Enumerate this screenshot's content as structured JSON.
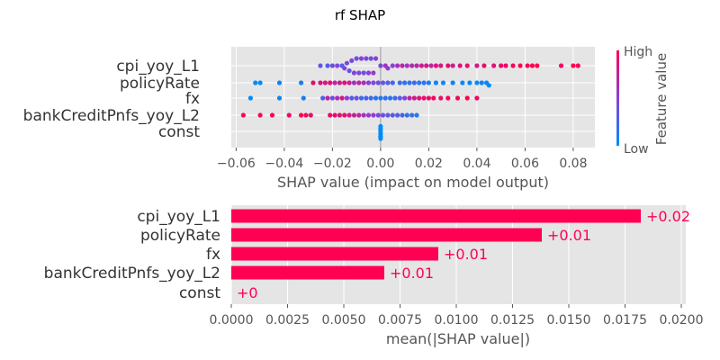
{
  "figure_title": "rf SHAP",
  "chart_data": [
    {
      "type": "scatter",
      "subtype": "shap-beeswarm",
      "features": [
        "cpi_yoy_L1",
        "policyRate",
        "fx",
        "bankCreditPnfs_yoy_L2",
        "const"
      ],
      "xlabel": "SHAP value (impact on model output)",
      "xlim": [
        -0.062,
        0.089
      ],
      "xticks": [
        -0.06,
        -0.04,
        -0.02,
        0.0,
        0.02,
        0.04,
        0.06,
        0.08
      ],
      "xtick_labels": [
        "−0.06",
        "−0.04",
        "−0.02",
        "0.00",
        "0.02",
        "0.04",
        "0.06",
        "0.08"
      ],
      "grid": true,
      "colorbar": {
        "label": "Feature value",
        "high": "High",
        "low": "Low",
        "high_color": "#ff0052",
        "low_color": "#008bfb"
      },
      "series": [
        {
          "feature": "cpi_yoy_L1",
          "x": [
            -0.025,
            -0.022,
            -0.02,
            -0.018,
            -0.016,
            -0.015,
            -0.014,
            -0.013,
            -0.012,
            -0.011,
            -0.01,
            -0.009,
            -0.008,
            -0.007,
            -0.006,
            -0.005,
            -0.004,
            -0.003,
            -0.002,
            0.0,
            0.002,
            0.003,
            0.005,
            0.007,
            0.009,
            0.011,
            0.013,
            0.015,
            0.017,
            0.019,
            0.021,
            0.023,
            0.025,
            0.028,
            0.03,
            0.033,
            0.036,
            0.04,
            0.043,
            0.047,
            0.05,
            0.052,
            0.055,
            0.058,
            0.061,
            0.063,
            0.065,
            0.075,
            0.08,
            0.082
          ],
          "v": [
            0.35,
            0.3,
            0.4,
            0.45,
            0.3,
            0.5,
            0.4,
            0.35,
            0.45,
            0.5,
            0.4,
            0.45,
            0.5,
            0.4,
            0.45,
            0.5,
            0.4,
            0.55,
            0.5,
            0.45,
            0.6,
            0.55,
            0.5,
            0.6,
            0.7,
            0.6,
            0.65,
            0.7,
            0.75,
            0.8,
            0.7,
            0.85,
            0.8,
            0.9,
            0.75,
            0.85,
            0.9,
            0.8,
            0.9,
            0.85,
            0.95,
            0.9,
            0.95,
            1.0,
            0.95,
            1.0,
            1.0,
            0.95,
            1.0,
            1.0
          ]
        },
        {
          "feature": "policyRate",
          "x": [
            -0.052,
            -0.05,
            -0.042,
            -0.033,
            -0.028,
            -0.025,
            -0.023,
            -0.021,
            -0.019,
            -0.017,
            -0.015,
            -0.013,
            -0.011,
            -0.009,
            -0.007,
            -0.005,
            -0.003,
            -0.001,
            0.001,
            0.003,
            0.005,
            0.008,
            0.01,
            0.012,
            0.014,
            0.016,
            0.018,
            0.02,
            0.023,
            0.026,
            0.03,
            0.034,
            0.037,
            0.04,
            0.042,
            0.044,
            0.045
          ],
          "v": [
            0.0,
            0.0,
            0.05,
            0.1,
            0.9,
            0.85,
            0.8,
            0.9,
            0.7,
            0.8,
            0.85,
            0.75,
            0.6,
            0.7,
            0.65,
            0.5,
            0.45,
            0.4,
            0.35,
            0.3,
            0.25,
            0.2,
            0.2,
            0.15,
            0.25,
            0.1,
            0.15,
            0.1,
            0.05,
            0.0,
            0.05,
            0.0,
            0.0,
            0.0,
            0.05,
            0.0,
            0.0
          ]
        },
        {
          "feature": "fx",
          "x": [
            -0.054,
            -0.042,
            -0.032,
            -0.024,
            -0.022,
            -0.02,
            -0.018,
            -0.016,
            -0.014,
            -0.012,
            -0.01,
            -0.008,
            -0.006,
            -0.004,
            -0.002,
            0.0,
            0.002,
            0.004,
            0.006,
            0.008,
            0.01,
            0.012,
            0.014,
            0.016,
            0.018,
            0.02,
            0.022,
            0.025,
            0.028,
            0.032,
            0.036,
            0.04
          ],
          "v": [
            0.0,
            0.05,
            0.1,
            0.3,
            0.7,
            0.4,
            0.6,
            0.8,
            0.5,
            0.3,
            0.4,
            0.2,
            0.3,
            0.2,
            0.15,
            0.1,
            0.2,
            0.15,
            0.25,
            0.3,
            0.5,
            0.7,
            0.8,
            0.85,
            0.9,
            0.9,
            0.95,
            0.9,
            1.0,
            0.95,
            1.0,
            0.95
          ]
        },
        {
          "feature": "bankCreditPnfs_yoy_L2",
          "x": [
            -0.057,
            -0.05,
            -0.045,
            -0.038,
            -0.033,
            -0.031,
            -0.029,
            -0.021,
            -0.019,
            -0.017,
            -0.015,
            -0.013,
            -0.011,
            -0.009,
            -0.007,
            -0.005,
            -0.003,
            -0.001,
            0.001,
            0.003,
            0.005,
            0.007,
            0.009,
            0.011,
            0.013,
            0.015
          ],
          "v": [
            1.0,
            0.95,
            1.0,
            0.95,
            1.0,
            0.95,
            0.9,
            0.95,
            0.9,
            0.85,
            0.9,
            0.8,
            0.75,
            0.7,
            0.6,
            0.55,
            0.5,
            0.45,
            0.4,
            0.35,
            0.3,
            0.3,
            0.25,
            0.2,
            0.15,
            0.15
          ]
        },
        {
          "feature": "const",
          "x": [
            0.0,
            0.0,
            0.0,
            0.0,
            0.0,
            0.0
          ],
          "v": [
            0.0,
            0.0,
            0.0,
            0.0,
            0.0,
            0.0
          ]
        }
      ]
    },
    {
      "type": "bar",
      "orientation": "horizontal",
      "categories": [
        "cpi_yoy_L1",
        "policyRate",
        "fx",
        "bankCreditPnfs_yoy_L2",
        "const"
      ],
      "values": [
        0.0182,
        0.0138,
        0.0092,
        0.0068,
        0.0
      ],
      "data_labels": [
        "+0.02",
        "+0.01",
        "+0.01",
        "+0.01",
        "+0"
      ],
      "xlabel": "mean(|SHAP value|)",
      "xlim": [
        0.0,
        0.0202
      ],
      "xticks": [
        0.0,
        0.0025,
        0.005,
        0.0075,
        0.01,
        0.0125,
        0.015,
        0.0175,
        0.02
      ],
      "xtick_labels": [
        "0.0000",
        "0.0025",
        "0.0050",
        "0.0075",
        "0.0100",
        "0.0125",
        "0.0150",
        "0.0175",
        "0.0200"
      ],
      "bar_color": "#ff0052",
      "grid": true
    }
  ]
}
